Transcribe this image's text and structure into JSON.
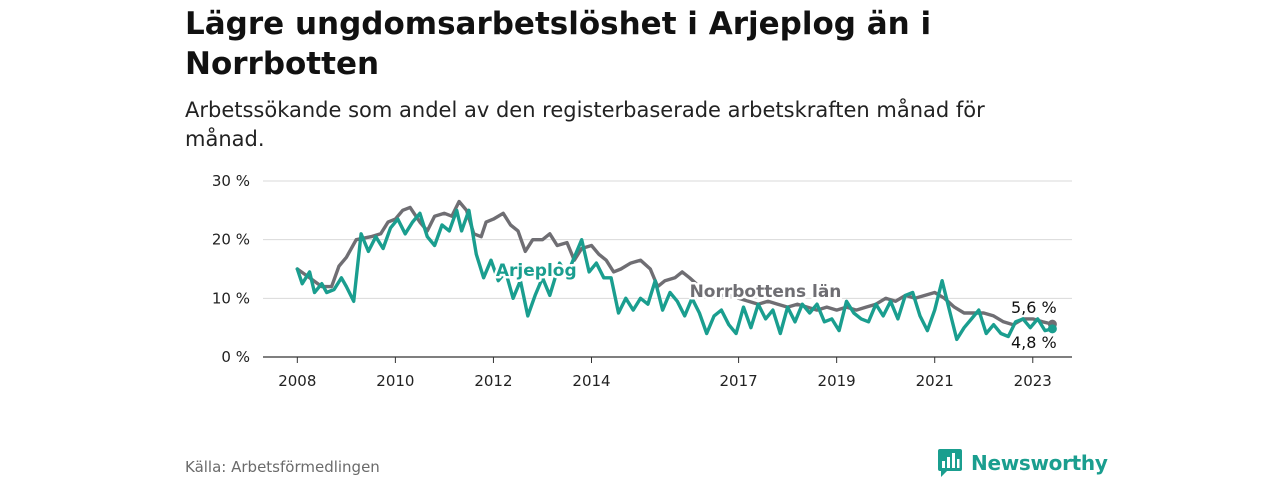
{
  "chart_data": {
    "type": "line",
    "title": "Lägre ungdomsarbetslöshet i Arjeplog än i Norrbotten",
    "subtitle": "Arbetssökande som andel av den registerbaserade arbetskraften månad för månad.",
    "ylim": [
      0,
      30
    ],
    "y_ticks": [
      0,
      10,
      20,
      30
    ],
    "y_tick_labels": [
      "0 %",
      "10 %",
      "20 %",
      "30 %"
    ],
    "x_ticks": [
      2008,
      2010,
      2012,
      2014,
      2017,
      2019,
      2021,
      2023
    ],
    "x_tick_labels": [
      "2008",
      "2010",
      "2012",
      "2014",
      "2017",
      "2019",
      "2021",
      "2023"
    ],
    "xlim": [
      2007.3,
      2023.8
    ],
    "grid": true,
    "series": [
      {
        "name": "Norrbottens län",
        "label": "Norrbottens län",
        "color": "#6f6e73",
        "last_value_label": "5,6 %",
        "points": [
          [
            2008.0,
            15.0
          ],
          [
            2008.25,
            13.5
          ],
          [
            2008.5,
            12.0
          ],
          [
            2008.7,
            12.0
          ],
          [
            2008.85,
            15.5
          ],
          [
            2009.0,
            17.0
          ],
          [
            2009.2,
            20.0
          ],
          [
            2009.5,
            20.5
          ],
          [
            2009.7,
            21.0
          ],
          [
            2009.85,
            23.0
          ],
          [
            2010.0,
            23.5
          ],
          [
            2010.15,
            25.0
          ],
          [
            2010.3,
            25.5
          ],
          [
            2010.5,
            23.0
          ],
          [
            2010.65,
            21.5
          ],
          [
            2010.8,
            24.0
          ],
          [
            2011.0,
            24.5
          ],
          [
            2011.15,
            24.0
          ],
          [
            2011.3,
            26.5
          ],
          [
            2011.45,
            25.0
          ],
          [
            2011.6,
            21.0
          ],
          [
            2011.75,
            20.5
          ],
          [
            2011.85,
            23.0
          ],
          [
            2012.0,
            23.5
          ],
          [
            2012.2,
            24.5
          ],
          [
            2012.35,
            22.5
          ],
          [
            2012.5,
            21.5
          ],
          [
            2012.65,
            18.0
          ],
          [
            2012.8,
            20.0
          ],
          [
            2013.0,
            20.0
          ],
          [
            2013.15,
            21.0
          ],
          [
            2013.3,
            19.0
          ],
          [
            2013.5,
            19.5
          ],
          [
            2013.65,
            16.5
          ],
          [
            2013.8,
            18.5
          ],
          [
            2014.0,
            19.0
          ],
          [
            2014.15,
            17.5
          ],
          [
            2014.3,
            16.5
          ],
          [
            2014.45,
            14.5
          ],
          [
            2014.6,
            15.0
          ],
          [
            2014.8,
            16.0
          ],
          [
            2015.0,
            16.5
          ],
          [
            2015.2,
            15.0
          ],
          [
            2015.35,
            12.0
          ],
          [
            2015.5,
            13.0
          ],
          [
            2015.7,
            13.5
          ],
          [
            2015.85,
            14.5
          ],
          [
            2016.0,
            13.5
          ],
          [
            2016.2,
            12.0
          ],
          [
            2016.4,
            11.0
          ],
          [
            2016.6,
            10.5
          ],
          [
            2016.8,
            10.5
          ],
          [
            2017.0,
            10.0
          ],
          [
            2017.2,
            9.5
          ],
          [
            2017.4,
            9.0
          ],
          [
            2017.6,
            9.5
          ],
          [
            2017.8,
            9.0
          ],
          [
            2018.0,
            8.5
          ],
          [
            2018.2,
            9.0
          ],
          [
            2018.4,
            8.5
          ],
          [
            2018.6,
            8.0
          ],
          [
            2018.8,
            8.5
          ],
          [
            2019.0,
            8.0
          ],
          [
            2019.2,
            8.5
          ],
          [
            2019.4,
            8.0
          ],
          [
            2019.6,
            8.5
          ],
          [
            2019.8,
            9.0
          ],
          [
            2020.0,
            10.0
          ],
          [
            2020.2,
            9.5
          ],
          [
            2020.4,
            10.5
          ],
          [
            2020.6,
            10.0
          ],
          [
            2020.8,
            10.5
          ],
          [
            2021.0,
            11.0
          ],
          [
            2021.2,
            10.0
          ],
          [
            2021.4,
            8.5
          ],
          [
            2021.6,
            7.5
          ],
          [
            2021.8,
            7.5
          ],
          [
            2022.0,
            7.5
          ],
          [
            2022.2,
            7.0
          ],
          [
            2022.4,
            6.0
          ],
          [
            2022.6,
            5.5
          ],
          [
            2022.8,
            6.5
          ],
          [
            2023.0,
            6.5
          ],
          [
            2023.2,
            6.0
          ],
          [
            2023.4,
            5.6
          ]
        ]
      },
      {
        "name": "Arjeplog",
        "label": "Arjeplog",
        "color": "#1a9e8f",
        "last_value_label": "4,8 %",
        "points": [
          [
            2008.0,
            15.0
          ],
          [
            2008.1,
            12.5
          ],
          [
            2008.25,
            14.5
          ],
          [
            2008.35,
            11.0
          ],
          [
            2008.5,
            12.5
          ],
          [
            2008.6,
            11.0
          ],
          [
            2008.75,
            11.5
          ],
          [
            2008.9,
            13.5
          ],
          [
            2009.0,
            12.0
          ],
          [
            2009.15,
            9.5
          ],
          [
            2009.3,
            21.0
          ],
          [
            2009.45,
            18.0
          ],
          [
            2009.6,
            20.5
          ],
          [
            2009.75,
            18.5
          ],
          [
            2009.9,
            22.0
          ],
          [
            2010.05,
            23.5
          ],
          [
            2010.2,
            21.0
          ],
          [
            2010.35,
            23.0
          ],
          [
            2010.5,
            24.5
          ],
          [
            2010.65,
            20.5
          ],
          [
            2010.8,
            19.0
          ],
          [
            2010.95,
            22.5
          ],
          [
            2011.1,
            21.5
          ],
          [
            2011.25,
            25.0
          ],
          [
            2011.35,
            21.5
          ],
          [
            2011.5,
            25.0
          ],
          [
            2011.65,
            17.5
          ],
          [
            2011.8,
            13.5
          ],
          [
            2011.95,
            16.5
          ],
          [
            2012.1,
            13.0
          ],
          [
            2012.25,
            14.5
          ],
          [
            2012.4,
            10.0
          ],
          [
            2012.55,
            13.0
          ],
          [
            2012.7,
            7.0
          ],
          [
            2012.85,
            10.5
          ],
          [
            2013.0,
            13.5
          ],
          [
            2013.15,
            10.5
          ],
          [
            2013.35,
            16.0
          ],
          [
            2013.5,
            14.0
          ],
          [
            2013.65,
            17.0
          ],
          [
            2013.8,
            20.0
          ],
          [
            2013.95,
            14.5
          ],
          [
            2014.1,
            16.0
          ],
          [
            2014.25,
            13.5
          ],
          [
            2014.4,
            13.5
          ],
          [
            2014.55,
            7.5
          ],
          [
            2014.7,
            10.0
          ],
          [
            2014.85,
            8.0
          ],
          [
            2015.0,
            10.0
          ],
          [
            2015.15,
            9.0
          ],
          [
            2015.3,
            13.0
          ],
          [
            2015.45,
            8.0
          ],
          [
            2015.6,
            11.0
          ],
          [
            2015.75,
            9.5
          ],
          [
            2015.9,
            7.0
          ],
          [
            2016.05,
            10.0
          ],
          [
            2016.2,
            7.5
          ],
          [
            2016.35,
            4.0
          ],
          [
            2016.5,
            7.0
          ],
          [
            2016.65,
            8.0
          ],
          [
            2016.8,
            5.5
          ],
          [
            2016.95,
            4.0
          ],
          [
            2017.1,
            8.5
          ],
          [
            2017.25,
            5.0
          ],
          [
            2017.4,
            9.0
          ],
          [
            2017.55,
            6.5
          ],
          [
            2017.7,
            8.0
          ],
          [
            2017.85,
            4.0
          ],
          [
            2018.0,
            8.5
          ],
          [
            2018.15,
            6.0
          ],
          [
            2018.3,
            9.0
          ],
          [
            2018.45,
            7.5
          ],
          [
            2018.6,
            9.0
          ],
          [
            2018.75,
            6.0
          ],
          [
            2018.9,
            6.5
          ],
          [
            2019.05,
            4.5
          ],
          [
            2019.2,
            9.5
          ],
          [
            2019.35,
            7.5
          ],
          [
            2019.5,
            6.5
          ],
          [
            2019.65,
            6.0
          ],
          [
            2019.8,
            9.0
          ],
          [
            2019.95,
            7.0
          ],
          [
            2020.1,
            9.5
          ],
          [
            2020.25,
            6.5
          ],
          [
            2020.4,
            10.5
          ],
          [
            2020.55,
            11.0
          ],
          [
            2020.7,
            7.0
          ],
          [
            2020.85,
            4.5
          ],
          [
            2021.0,
            8.0
          ],
          [
            2021.15,
            13.0
          ],
          [
            2021.3,
            8.0
          ],
          [
            2021.45,
            3.0
          ],
          [
            2021.6,
            5.0
          ],
          [
            2021.75,
            6.5
          ],
          [
            2021.9,
            8.0
          ],
          [
            2022.05,
            4.0
          ],
          [
            2022.2,
            5.5
          ],
          [
            2022.35,
            4.0
          ],
          [
            2022.5,
            3.5
          ],
          [
            2022.65,
            6.0
          ],
          [
            2022.8,
            6.5
          ],
          [
            2022.95,
            5.0
          ],
          [
            2023.1,
            6.5
          ],
          [
            2023.25,
            4.5
          ],
          [
            2023.4,
            4.8
          ]
        ]
      }
    ]
  },
  "source": "Källa: Arbetsförmedlingen",
  "brand": {
    "name": "Newsworthy",
    "icon": "newsworthy-logo-icon",
    "color": "#1a9e8f"
  }
}
